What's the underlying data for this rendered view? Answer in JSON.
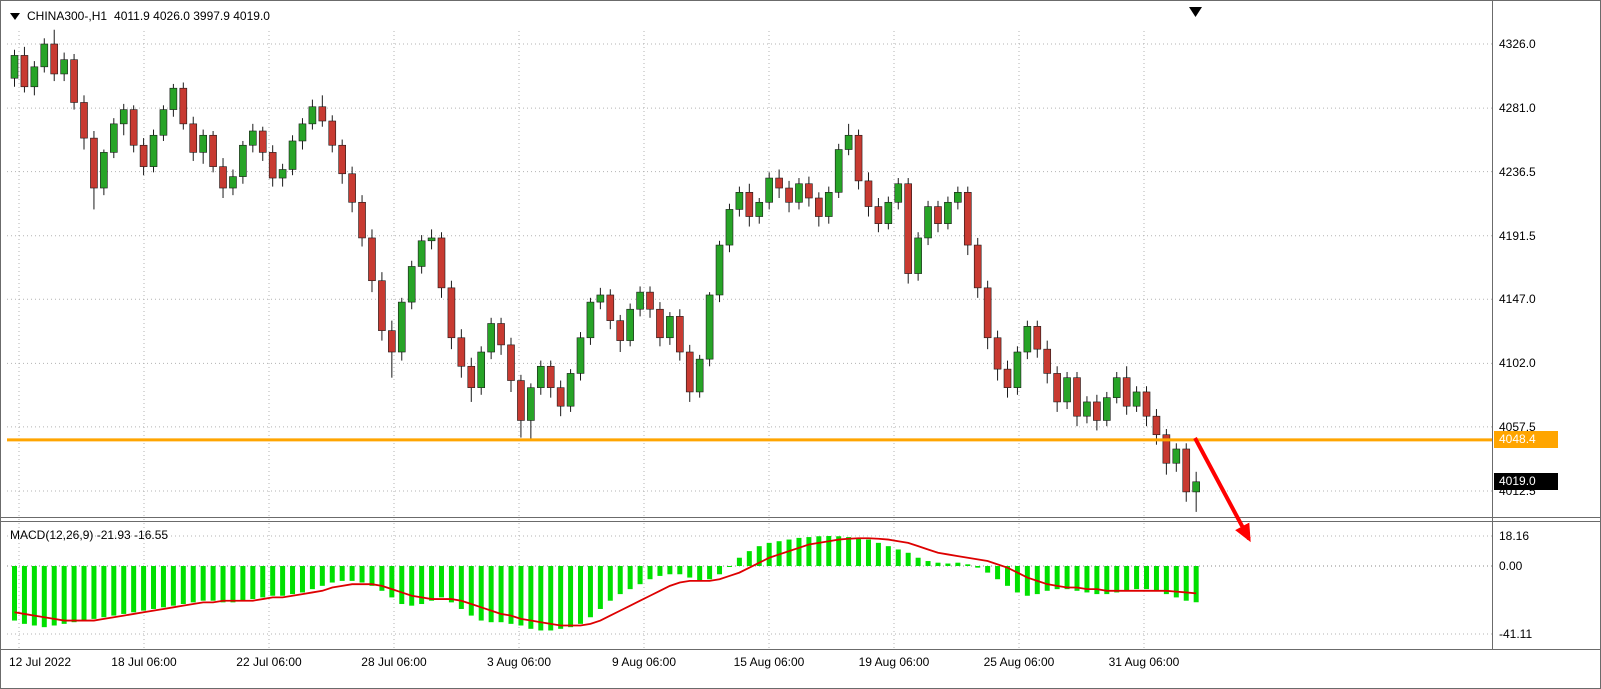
{
  "header": {
    "title": "CHINA300-,H1",
    "ohlc_text": "4011.9 4026.0 3997.9 4019.0"
  },
  "macd_panel": {
    "title": "MACD(12,26,9) -21.93 -16.55"
  },
  "colors": {
    "bull": "#27a427",
    "bear": "#c83a31",
    "wick": "#1a1a1a",
    "body_outline": "#1a1a1a",
    "macd_hist": "#00e000",
    "macd_signal": "#dd0000",
    "grid": "#b3b3b3",
    "frame": "#6b6b6b",
    "arrow": "#ff0000",
    "bid_badge_bg": "#000000"
  },
  "annotations": {
    "trend_arrow": {
      "direction": "down-right",
      "color": "#ff0000"
    }
  },
  "chart_data": {
    "type": "candlestick",
    "symbol": "CHINA300-",
    "timeframe": "H1",
    "last_ohlc": {
      "open": 4011.9,
      "high": 4026.0,
      "low": 3997.9,
      "close": 4019.0
    },
    "ylim_main": [
      3995,
      4356
    ],
    "price_gridlines": [
      4326.0,
      4281.0,
      4236.5,
      4191.5,
      4147.0,
      4102.0,
      4057.5,
      4012.5
    ],
    "time_gridlines": [
      "12 Jul 2022",
      "18 Jul 06:00",
      "22 Jul 06:00",
      "28 Jul 06:00",
      "3 Aug 06:00",
      "9 Aug 06:00",
      "15 Aug 06:00",
      "19 Aug 06:00",
      "25 Aug 06:00",
      "31 Aug 06:00"
    ],
    "horizontal_line": {
      "price": 4048.4,
      "color": "#FFA500"
    },
    "bid_line": {
      "price": 4019.0
    },
    "candles": [
      [
        4302,
        4322,
        4296,
        4318
      ],
      [
        4318,
        4324,
        4292,
        4296
      ],
      [
        4296,
        4314,
        4290,
        4310
      ],
      [
        4310,
        4330,
        4306,
        4326
      ],
      [
        4326,
        4336,
        4300,
        4305
      ],
      [
        4305,
        4320,
        4300,
        4315
      ],
      [
        4315,
        4319,
        4280,
        4285
      ],
      [
        4285,
        4290,
        4252,
        4260
      ],
      [
        4260,
        4265,
        4210,
        4225
      ],
      [
        4225,
        4252,
        4220,
        4250
      ],
      [
        4250,
        4274,
        4246,
        4270
      ],
      [
        4270,
        4284,
        4262,
        4280
      ],
      [
        4280,
        4283,
        4250,
        4255
      ],
      [
        4255,
        4260,
        4234,
        4240
      ],
      [
        4240,
        4266,
        4236,
        4262
      ],
      [
        4262,
        4283,
        4258,
        4280
      ],
      [
        4280,
        4298,
        4275,
        4295
      ],
      [
        4295,
        4299,
        4266,
        4270
      ],
      [
        4270,
        4275,
        4244,
        4250
      ],
      [
        4250,
        4266,
        4242,
        4262
      ],
      [
        4262,
        4265,
        4236,
        4240
      ],
      [
        4240,
        4246,
        4218,
        4225
      ],
      [
        4225,
        4238,
        4220,
        4233
      ],
      [
        4233,
        4258,
        4228,
        4255
      ],
      [
        4255,
        4270,
        4250,
        4265
      ],
      [
        4265,
        4268,
        4244,
        4250
      ],
      [
        4250,
        4255,
        4226,
        4232
      ],
      [
        4232,
        4242,
        4226,
        4238
      ],
      [
        4238,
        4262,
        4234,
        4258
      ],
      [
        4258,
        4274,
        4252,
        4270
      ],
      [
        4270,
        4287,
        4266,
        4282
      ],
      [
        4282,
        4290,
        4268,
        4272
      ],
      [
        4272,
        4276,
        4250,
        4255
      ],
      [
        4255,
        4259,
        4228,
        4235
      ],
      [
        4235,
        4240,
        4208,
        4215
      ],
      [
        4215,
        4220,
        4184,
        4190
      ],
      [
        4190,
        4196,
        4152,
        4160
      ],
      [
        4160,
        4166,
        4118,
        4125
      ],
      [
        4125,
        4132,
        4092,
        4110
      ],
      [
        4110,
        4148,
        4104,
        4145
      ],
      [
        4145,
        4174,
        4140,
        4170
      ],
      [
        4170,
        4192,
        4165,
        4188
      ],
      [
        4188,
        4196,
        4182,
        4190
      ],
      [
        4190,
        4194,
        4148,
        4155
      ],
      [
        4155,
        4160,
        4112,
        4120
      ],
      [
        4120,
        4126,
        4092,
        4100
      ],
      [
        4100,
        4106,
        4075,
        4085
      ],
      [
        4085,
        4114,
        4080,
        4110
      ],
      [
        4110,
        4134,
        4105,
        4130
      ],
      [
        4130,
        4134,
        4108,
        4115
      ],
      [
        4115,
        4120,
        4082,
        4090
      ],
      [
        4090,
        4094,
        4050,
        4062
      ],
      [
        4062,
        4088,
        4048,
        4085
      ],
      [
        4085,
        4104,
        4080,
        4100
      ],
      [
        4100,
        4104,
        4078,
        4085
      ],
      [
        4085,
        4090,
        4065,
        4072
      ],
      [
        4072,
        4098,
        4068,
        4095
      ],
      [
        4095,
        4124,
        4090,
        4120
      ],
      [
        4120,
        4148,
        4115,
        4145
      ],
      [
        4145,
        4155,
        4140,
        4150
      ],
      [
        4150,
        4154,
        4126,
        4132
      ],
      [
        4132,
        4136,
        4110,
        4118
      ],
      [
        4118,
        4144,
        4114,
        4140
      ],
      [
        4140,
        4156,
        4135,
        4152
      ],
      [
        4152,
        4156,
        4134,
        4140
      ],
      [
        4140,
        4145,
        4114,
        4120
      ],
      [
        4120,
        4138,
        4115,
        4135
      ],
      [
        4135,
        4140,
        4104,
        4110
      ],
      [
        4110,
        4115,
        4075,
        4082
      ],
      [
        4082,
        4108,
        4078,
        4105
      ],
      [
        4105,
        4152,
        4100,
        4150
      ],
      [
        4150,
        4188,
        4145,
        4185
      ],
      [
        4185,
        4214,
        4180,
        4210
      ],
      [
        4210,
        4226,
        4205,
        4222
      ],
      [
        4222,
        4228,
        4198,
        4205
      ],
      [
        4205,
        4218,
        4200,
        4215
      ],
      [
        4215,
        4236,
        4210,
        4232
      ],
      [
        4232,
        4238,
        4218,
        4225
      ],
      [
        4225,
        4230,
        4208,
        4215
      ],
      [
        4215,
        4232,
        4210,
        4228
      ],
      [
        4228,
        4233,
        4212,
        4218
      ],
      [
        4218,
        4222,
        4198,
        4205
      ],
      [
        4205,
        4226,
        4200,
        4222
      ],
      [
        4222,
        4256,
        4218,
        4252
      ],
      [
        4252,
        4270,
        4248,
        4262
      ],
      [
        4262,
        4266,
        4224,
        4230
      ],
      [
        4230,
        4236,
        4205,
        4212
      ],
      [
        4212,
        4218,
        4194,
        4200
      ],
      [
        4200,
        4219,
        4196,
        4215
      ],
      [
        4215,
        4232,
        4210,
        4228
      ],
      [
        4228,
        4232,
        4158,
        4165
      ],
      [
        4165,
        4194,
        4160,
        4190
      ],
      [
        4190,
        4216,
        4185,
        4212
      ],
      [
        4212,
        4216,
        4194,
        4200
      ],
      [
        4200,
        4219,
        4196,
        4215
      ],
      [
        4215,
        4226,
        4210,
        4222
      ],
      [
        4222,
        4226,
        4178,
        4185
      ],
      [
        4185,
        4190,
        4148,
        4155
      ],
      [
        4155,
        4160,
        4112,
        4120
      ],
      [
        4120,
        4125,
        4090,
        4098
      ],
      [
        4098,
        4104,
        4078,
        4085
      ],
      [
        4085,
        4114,
        4080,
        4110
      ],
      [
        4110,
        4132,
        4105,
        4128
      ],
      [
        4128,
        4132,
        4106,
        4112
      ],
      [
        4112,
        4118,
        4088,
        4095
      ],
      [
        4095,
        4100,
        4068,
        4075
      ],
      [
        4075,
        4096,
        4070,
        4092
      ],
      [
        4092,
        4096,
        4058,
        4065
      ],
      [
        4065,
        4079,
        4060,
        4075
      ],
      [
        4075,
        4080,
        4055,
        4062
      ],
      [
        4062,
        4082,
        4058,
        4078
      ],
      [
        4078,
        4096,
        4074,
        4092
      ],
      [
        4092,
        4100,
        4066,
        4072
      ],
      [
        4072,
        4086,
        4068,
        4082
      ],
      [
        4082,
        4086,
        4058,
        4065
      ],
      [
        4065,
        4070,
        4045,
        4052
      ],
      [
        4052,
        4056,
        4024,
        4032
      ],
      [
        4032,
        4046,
        4026,
        4042
      ],
      [
        4042,
        4046,
        4005,
        4011.9
      ],
      [
        4011.9,
        4026.0,
        3997.9,
        4019.0
      ]
    ],
    "macd": {
      "params": "12,26,9",
      "main_last": -21.93,
      "signal_last": -16.55,
      "axis_values": [
        18.16,
        0.0,
        -41.11
      ],
      "histogram": [
        -33,
        -35,
        -36,
        -37,
        -36,
        -35,
        -34,
        -33,
        -32,
        -31,
        -30,
        -29,
        -28,
        -27,
        -26,
        -25,
        -24,
        -23,
        -22,
        -21,
        -21,
        -22,
        -22,
        -21,
        -20,
        -19,
        -18,
        -18,
        -17,
        -16,
        -14,
        -12,
        -10,
        -9,
        -9,
        -10,
        -12,
        -15,
        -19,
        -23,
        -24,
        -23,
        -21,
        -19,
        -22,
        -26,
        -30,
        -33,
        -34,
        -34,
        -35,
        -36,
        -38,
        -39,
        -39,
        -38,
        -37,
        -35,
        -31,
        -26,
        -21,
        -17,
        -14,
        -11,
        -8,
        -6,
        -5,
        -5,
        -7,
        -9,
        -8,
        -5,
        0,
        5,
        9,
        12,
        14,
        15,
        16,
        17,
        17.5,
        18,
        18.16,
        18,
        17.5,
        17,
        16,
        14,
        12,
        10,
        8,
        5,
        3,
        2,
        1.5,
        2,
        1,
        -1,
        -4,
        -8,
        -12,
        -16,
        -18,
        -17,
        -15,
        -14,
        -14,
        -15,
        -16,
        -17,
        -17,
        -16,
        -15,
        -14,
        -14,
        -15,
        -17,
        -19,
        -21,
        -21.93
      ],
      "signal": [
        -28,
        -29,
        -30,
        -31,
        -32,
        -33,
        -33,
        -33,
        -33,
        -32,
        -31,
        -30,
        -29,
        -28,
        -27,
        -26,
        -25,
        -24,
        -23,
        -22,
        -22,
        -21,
        -21,
        -21,
        -21,
        -20,
        -19,
        -19,
        -18,
        -17,
        -16,
        -15,
        -13,
        -12,
        -11,
        -11,
        -11,
        -12,
        -14,
        -16,
        -18,
        -19,
        -20,
        -20,
        -20,
        -21,
        -23,
        -25,
        -27,
        -29,
        -30,
        -32,
        -33,
        -34,
        -35,
        -36,
        -36,
        -36,
        -35,
        -33,
        -30,
        -27,
        -24,
        -21,
        -18,
        -15,
        -12,
        -10,
        -9,
        -9,
        -9,
        -8,
        -6,
        -4,
        -1,
        2,
        5,
        7,
        9,
        11,
        13,
        14,
        15,
        16,
        16.5,
        16.8,
        16.8,
        16.5,
        16,
        15,
        14,
        12,
        10,
        8,
        7,
        6,
        5,
        4,
        3,
        1,
        -1,
        -4,
        -7,
        -9,
        -11,
        -12,
        -13,
        -13,
        -14,
        -14,
        -15,
        -15,
        -15,
        -15,
        -15,
        -15,
        -15,
        -15.5,
        -16,
        -16.55
      ]
    }
  }
}
